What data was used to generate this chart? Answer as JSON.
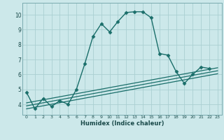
{
  "background_color": "#cce8ea",
  "grid_color": "#aacfd2",
  "line_color": "#1a6e6a",
  "xlabel": "Humidex (Indice chaleur)",
  "xlim": [
    -0.5,
    23.5
  ],
  "ylim": [
    3.3,
    10.8
  ],
  "yticks": [
    4,
    5,
    6,
    7,
    8,
    9,
    10
  ],
  "xticks": [
    0,
    1,
    2,
    3,
    4,
    5,
    6,
    7,
    8,
    9,
    10,
    11,
    12,
    13,
    14,
    15,
    16,
    17,
    18,
    19,
    20,
    21,
    22,
    23
  ],
  "series": [
    {
      "x": [
        0,
        1,
        2,
        3,
        4,
        5,
        6,
        7,
        8,
        9,
        10,
        11,
        12,
        13,
        14,
        15,
        16,
        17,
        18,
        19,
        20,
        21,
        22
      ],
      "y": [
        4.8,
        3.7,
        4.4,
        3.85,
        4.25,
        4.0,
        5.0,
        6.7,
        8.55,
        9.4,
        8.85,
        9.55,
        10.15,
        10.2,
        10.2,
        9.8,
        7.4,
        7.3,
        6.2,
        5.4,
        6.0,
        6.5,
        6.4
      ],
      "marker": "D",
      "markersize": 2.5,
      "linewidth": 1.0,
      "linestyle": "-"
    },
    {
      "x": [
        0,
        23
      ],
      "y": [
        4.1,
        6.45
      ],
      "marker": null,
      "markersize": 0,
      "linewidth": 0.9,
      "linestyle": "-"
    },
    {
      "x": [
        0,
        23
      ],
      "y": [
        3.9,
        6.25
      ],
      "marker": null,
      "markersize": 0,
      "linewidth": 0.9,
      "linestyle": "-"
    },
    {
      "x": [
        0,
        23
      ],
      "y": [
        3.7,
        6.05
      ],
      "marker": null,
      "markersize": 0,
      "linewidth": 0.9,
      "linestyle": "-"
    }
  ]
}
